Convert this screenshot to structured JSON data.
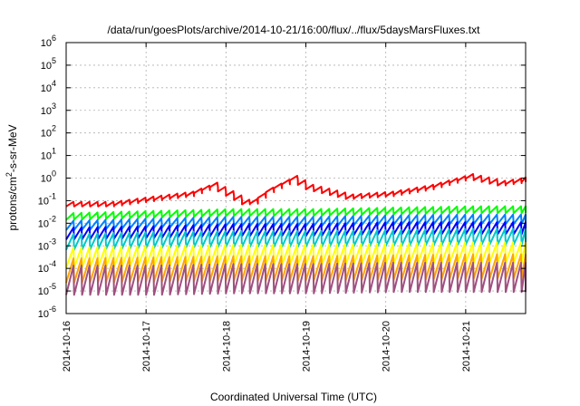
{
  "chart_data": {
    "type": "line",
    "title": "/data/run/goesPlots/archive/2014-10-21/16:00/flux/../flux/5daysMarsFluxes.txt",
    "xlabel": "Coordinated Universal Time (UTC)",
    "ylabel": "protons/cm²-s-sr-MeV",
    "x_ticks": [
      "2014-10-16",
      "2014-10-17",
      "2014-10-18",
      "2014-10-19",
      "2014-10-20",
      "2014-10-21"
    ],
    "y_ticks": [
      {
        "base": "10",
        "exp": "-6"
      },
      {
        "base": "10",
        "exp": "-5"
      },
      {
        "base": "10",
        "exp": "-4"
      },
      {
        "base": "10",
        "exp": "-3"
      },
      {
        "base": "10",
        "exp": "-2"
      },
      {
        "base": "10",
        "exp": "-1"
      },
      {
        "base": "10",
        "exp": "0"
      },
      {
        "base": "10",
        "exp": "1"
      },
      {
        "base": "10",
        "exp": "2"
      },
      {
        "base": "10",
        "exp": "3"
      },
      {
        "base": "10",
        "exp": "4"
      },
      {
        "base": "10",
        "exp": "5"
      },
      {
        "base": "10",
        "exp": "6"
      }
    ],
    "y_scale": "log",
    "ylim": [
      1e-06,
      1000000.0
    ],
    "xlim_days": [
      0,
      5.75
    ],
    "grid": true,
    "sawtooth_period_days": 0.1,
    "series": [
      {
        "color": "#ff0000",
        "anchors": [
          [
            0,
            0.07
          ],
          [
            0.5,
            0.07
          ],
          [
            1,
            0.12
          ],
          [
            1.5,
            0.2
          ],
          [
            1.8,
            0.5
          ],
          [
            2.25,
            0.07
          ],
          [
            2.5,
            0.3
          ],
          [
            2.8,
            1.0
          ],
          [
            3.0,
            0.4
          ],
          [
            3.5,
            0.15
          ],
          [
            4.0,
            0.2
          ],
          [
            4.5,
            0.4
          ],
          [
            5.0,
            1.2
          ],
          [
            5.4,
            0.6
          ],
          [
            5.75,
            0.9
          ]
        ],
        "amp": 1.6
      },
      {
        "color": "#00ff00",
        "anchors": [
          [
            0,
            0.02
          ],
          [
            1,
            0.025
          ],
          [
            2,
            0.03
          ],
          [
            3,
            0.03
          ],
          [
            4,
            0.035
          ],
          [
            5,
            0.04
          ],
          [
            5.75,
            0.04
          ]
        ],
        "amp": 2.0
      },
      {
        "color": "#0080ff",
        "anchors": [
          [
            0,
            0.008
          ],
          [
            1,
            0.01
          ],
          [
            2,
            0.012
          ],
          [
            3,
            0.012
          ],
          [
            4,
            0.014
          ],
          [
            5,
            0.015
          ],
          [
            5.75,
            0.015
          ]
        ],
        "amp": 2.6
      },
      {
        "color": "#0000ff",
        "anchors": [
          [
            0,
            0.0035
          ],
          [
            1,
            0.004
          ],
          [
            2,
            0.005
          ],
          [
            3,
            0.005
          ],
          [
            4,
            0.006
          ],
          [
            5,
            0.006
          ],
          [
            5.75,
            0.006
          ]
        ],
        "amp": 3.4
      },
      {
        "color": "#00c8c8",
        "anchors": [
          [
            0,
            0.0015
          ],
          [
            1,
            0.0018
          ],
          [
            2,
            0.002
          ],
          [
            3,
            0.002
          ],
          [
            4,
            0.0022
          ],
          [
            5,
            0.0025
          ],
          [
            5.75,
            0.0025
          ]
        ],
        "amp": 5.0
      },
      {
        "color": "#ffff00",
        "anchors": [
          [
            0,
            0.0003
          ],
          [
            1,
            0.00035
          ],
          [
            2,
            0.0004
          ],
          [
            3,
            0.0004
          ],
          [
            4,
            0.00045
          ],
          [
            5,
            0.0005
          ],
          [
            5.75,
            0.0005
          ]
        ],
        "amp": 8.0
      },
      {
        "color": "#ffa500",
        "anchors": [
          [
            0,
            8e-05
          ],
          [
            1,
            9e-05
          ],
          [
            2,
            0.0001
          ],
          [
            3,
            0.0001
          ],
          [
            4,
            0.00011
          ],
          [
            5,
            0.00012
          ],
          [
            5.75,
            0.00012
          ]
        ],
        "amp": 12.0
      },
      {
        "color": "#a05080",
        "anchors": [
          [
            0,
            3e-05
          ],
          [
            1,
            3e-05
          ],
          [
            2,
            3.5e-05
          ],
          [
            3,
            3.5e-05
          ],
          [
            4,
            4e-05
          ],
          [
            5,
            4e-05
          ],
          [
            5.75,
            4e-05
          ]
        ],
        "amp": 20.0
      }
    ]
  }
}
